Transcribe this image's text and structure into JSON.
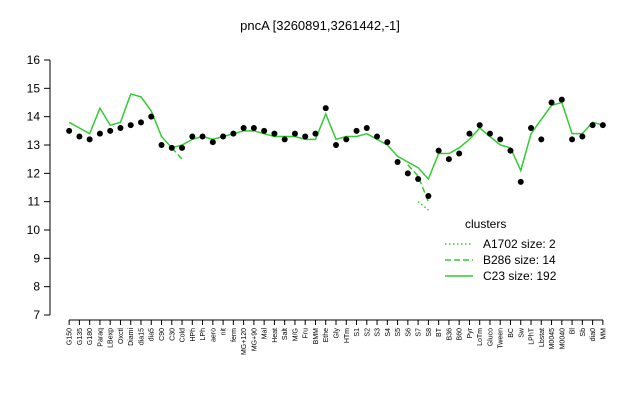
{
  "chart_data": {
    "type": "line",
    "title": "pncA [3260891,3261442,-1]",
    "categories": [
      "G150",
      "G135",
      "G180",
      "Paraq",
      "LBexp",
      "Oxctl",
      "Diami",
      "dia15",
      "dia5",
      "C90",
      "C30",
      "Cold",
      "HPh",
      "LPh",
      "aero",
      "nit",
      "ferm",
      "MG+120",
      "MG+90",
      "Mal",
      "Heat",
      "Salt",
      "M/G",
      "Fru",
      "BMM",
      "Ethe",
      "Gly",
      "HTm",
      "S1",
      "S2",
      "S3",
      "S4",
      "S5",
      "S6",
      "S7",
      "S8",
      "BT",
      "B36",
      "B60",
      "Pyr",
      "LoTm",
      "Gluco",
      "Tween",
      "BC",
      "Sw",
      "LPhT",
      "Lbstat",
      "M0045",
      "M0040",
      "Bl",
      "Sb",
      "dia0",
      "MM"
    ],
    "series": [
      {
        "name": "A1702 size: 2",
        "color": "#33cc33",
        "dash": "dotted",
        "values": [
          null,
          null,
          null,
          null,
          null,
          null,
          null,
          null,
          null,
          null,
          null,
          null,
          null,
          null,
          null,
          null,
          null,
          null,
          null,
          null,
          null,
          null,
          null,
          null,
          null,
          null,
          null,
          null,
          null,
          null,
          null,
          null,
          null,
          null,
          11.0,
          10.7,
          null,
          null,
          null,
          null,
          null,
          null,
          null,
          null,
          null,
          null,
          null,
          null,
          null,
          null,
          null,
          null,
          null
        ]
      },
      {
        "name": "B286 size: 14",
        "color": "#33cc33",
        "dash": "dashed",
        "values": [
          null,
          null,
          null,
          null,
          null,
          null,
          null,
          null,
          null,
          null,
          12.9,
          12.5,
          null,
          null,
          null,
          null,
          null,
          null,
          null,
          null,
          null,
          null,
          null,
          null,
          null,
          null,
          null,
          null,
          null,
          null,
          null,
          null,
          null,
          12.3,
          11.9,
          11.0,
          null,
          null,
          null,
          null,
          null,
          null,
          null,
          null,
          null,
          null,
          null,
          null,
          null,
          null,
          null,
          null,
          null
        ]
      },
      {
        "name": "C23 size: 192",
        "color": "#33cc33",
        "dash": "solid",
        "values": [
          13.8,
          13.6,
          13.4,
          14.3,
          13.7,
          13.8,
          14.8,
          14.7,
          14.2,
          13.3,
          12.9,
          13.0,
          13.2,
          13.3,
          13.2,
          13.3,
          13.4,
          13.5,
          13.5,
          13.4,
          13.3,
          13.3,
          13.3,
          13.2,
          13.2,
          14.1,
          13.2,
          13.3,
          13.3,
          13.4,
          13.2,
          13.0,
          12.6,
          12.4,
          12.2,
          11.8,
          12.7,
          12.7,
          12.9,
          13.2,
          13.6,
          13.3,
          13.0,
          12.9,
          12.1,
          13.4,
          13.9,
          14.4,
          14.5,
          13.4,
          13.4,
          13.8,
          13.7
        ]
      }
    ],
    "points": {
      "color": "#000000",
      "values": [
        13.5,
        13.3,
        13.2,
        13.4,
        13.5,
        13.6,
        13.7,
        13.8,
        14.0,
        13.0,
        12.9,
        12.9,
        13.3,
        13.3,
        13.1,
        13.3,
        13.4,
        13.6,
        13.6,
        13.5,
        13.4,
        13.2,
        13.4,
        13.3,
        13.4,
        14.3,
        13.0,
        13.2,
        13.5,
        13.6,
        13.3,
        13.1,
        12.4,
        12.0,
        11.8,
        11.2,
        12.8,
        12.5,
        12.7,
        13.4,
        13.7,
        13.4,
        13.2,
        12.8,
        11.7,
        13.6,
        13.2,
        14.5,
        14.6,
        13.2,
        13.3,
        13.7,
        13.7
      ]
    },
    "ylim": [
      7,
      16
    ],
    "yticks": [
      7,
      8,
      9,
      10,
      11,
      12,
      13,
      14,
      15,
      16
    ],
    "legend_title": "clusters",
    "legend": "right"
  }
}
